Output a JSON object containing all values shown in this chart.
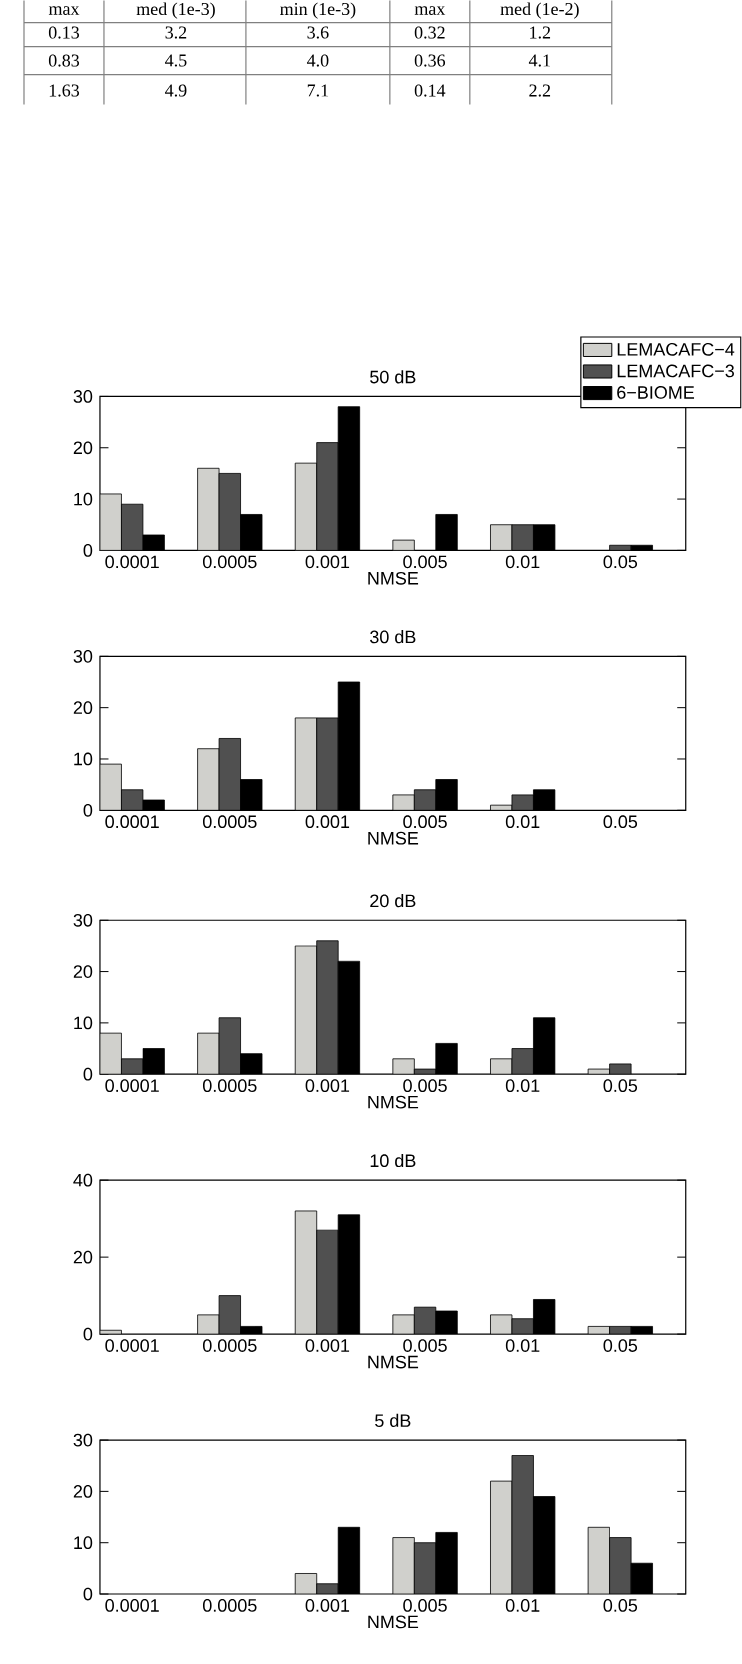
{
  "chart_data": [
    {
      "type": "bar",
      "title": "50 dB",
      "xlabel": "NMSE",
      "categories": [
        "0.0001",
        "0.0005",
        "0.001",
        "0.005",
        "0.01",
        "0.05"
      ],
      "ylim": [
        0,
        30
      ],
      "yticks": [
        0,
        10,
        20,
        30
      ],
      "legend": "top right",
      "annotations": [
        "max",
        "med (1e-3)",
        "min (1e-3)",
        "max",
        "med (1e-2)",
        "0.13",
        "3.2",
        "3.6",
        "0.32",
        "1.2",
        "0.83",
        "4.5",
        "4.0",
        "0.36",
        "4.1",
        "1.63",
        "4.9",
        "7.1",
        "0.14",
        "2.2"
      ],
      "series": [
        {
          "name": "LEMACAFC−4",
          "color": "#d0d0cc",
          "values": [
            11,
            16,
            17,
            2,
            5,
            0
          ]
        },
        {
          "name": "LEMACAFC−3",
          "color": "#505050",
          "values": [
            9,
            15,
            21,
            0,
            5,
            1
          ]
        },
        {
          "name": "6−BIOME",
          "color": "#000000",
          "values": [
            3,
            7,
            28,
            7,
            5,
            1
          ]
        }
      ]
    },
    {
      "type": "bar",
      "title": "30 dB",
      "xlabel": "NMSE",
      "categories": [
        "0.0001",
        "0.0005",
        "0.001",
        "0.005",
        "0.01",
        "0.05"
      ],
      "ylim": [
        0,
        30
      ],
      "yticks": [
        0,
        10,
        20,
        30
      ],
      "series": [
        {
          "color": "#d0d0cc",
          "values": [
            9,
            12,
            18,
            3,
            1,
            0
          ]
        },
        {
          "color": "#505050",
          "values": [
            4,
            14,
            18,
            4,
            3,
            0
          ]
        },
        {
          "color": "#000000",
          "values": [
            2,
            6,
            25,
            6,
            4,
            0
          ]
        }
      ]
    },
    {
      "type": "bar",
      "title": "20 dB",
      "xlabel": "NMSE",
      "categories": [
        "0.0001",
        "0.0005",
        "0.001",
        "0.005",
        "0.01",
        "0.05"
      ],
      "ylim": [
        0,
        30
      ],
      "yticks": [
        0,
        10,
        20,
        30
      ],
      "series": [
        {
          "color": "#d0d0cc",
          "values": [
            8,
            8,
            25,
            3,
            3,
            1
          ]
        },
        {
          "color": "#505050",
          "values": [
            3,
            11,
            26,
            1,
            5,
            2
          ]
        },
        {
          "color": "#000000",
          "values": [
            5,
            4,
            22,
            6,
            11,
            0
          ]
        }
      ]
    },
    {
      "type": "bar",
      "title": "10 dB",
      "xlabel": "NMSE",
      "categories": [
        "0.0001",
        "0.0005",
        "0.001",
        "0.005",
        "0.01",
        "0.05"
      ],
      "ylim": [
        0,
        40
      ],
      "yticks": [
        0,
        20,
        40
      ],
      "series": [
        {
          "color": "#d0d0cc",
          "values": [
            1,
            5,
            32,
            5,
            5,
            2
          ]
        },
        {
          "color": "#505050",
          "values": [
            0,
            10,
            27,
            7,
            4,
            2
          ]
        },
        {
          "color": "#000000",
          "values": [
            0,
            2,
            31,
            6,
            9,
            2
          ]
        }
      ]
    },
    {
      "type": "bar",
      "title": "5 dB",
      "xlabel": "NMSE",
      "categories": [
        "0.0001",
        "0.0005",
        "0.001",
        "0.005",
        "0.01",
        "0.05"
      ],
      "ylim": [
        0,
        30
      ],
      "yticks": [
        0,
        10,
        20,
        30
      ],
      "series": [
        {
          "color": "#d0d0cc",
          "values": [
            0,
            0,
            4,
            11,
            22,
            13
          ]
        },
        {
          "color": "#505050",
          "values": [
            0,
            0,
            2,
            10,
            27,
            11
          ]
        },
        {
          "color": "#000000",
          "values": [
            0,
            0,
            13,
            12,
            19,
            6
          ]
        }
      ]
    }
  ]
}
